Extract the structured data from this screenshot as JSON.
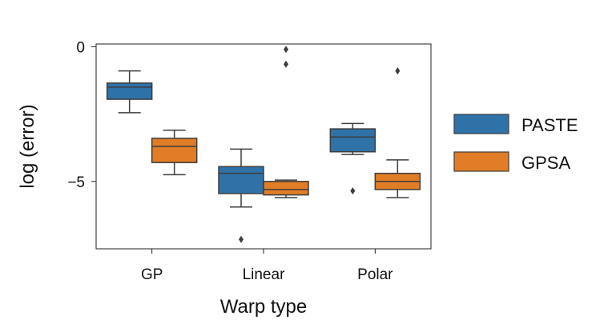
{
  "chart_data": {
    "type": "box",
    "xlabel": "Warp type",
    "ylabel": "log (error)",
    "categories": [
      "GP",
      "Linear",
      "Polar"
    ],
    "ylim": [
      -7.5,
      0.1
    ],
    "yticks": [
      0,
      -5
    ],
    "ytick_labels": [
      "0",
      "−5"
    ],
    "grid": false,
    "legend": "right",
    "series": [
      {
        "name": "PASTE",
        "color": "#2e72a8",
        "boxes": [
          {
            "whisker_low": -2.45,
            "q1": -1.95,
            "median": -1.5,
            "q3": -1.35,
            "whisker_high": -0.9,
            "outliers": []
          },
          {
            "whisker_low": -5.95,
            "q1": -5.45,
            "median": -4.7,
            "q3": -4.45,
            "whisker_high": -3.8,
            "outliers": [
              -7.15
            ]
          },
          {
            "whisker_low": -4.0,
            "q1": -3.9,
            "median": -3.35,
            "q3": -3.05,
            "whisker_high": -2.85,
            "outliers": [
              -5.35
            ]
          }
        ]
      },
      {
        "name": "GPSA",
        "color": "#e07d26",
        "boxes": [
          {
            "whisker_low": -4.75,
            "q1": -4.3,
            "median": -3.7,
            "q3": -3.4,
            "whisker_high": -3.1,
            "outliers": []
          },
          {
            "whisker_low": -5.6,
            "q1": -5.5,
            "median": -5.3,
            "q3": -5.0,
            "whisker_high": -4.95,
            "outliers": [
              -0.65,
              -0.1
            ]
          },
          {
            "whisker_low": -5.6,
            "q1": -5.3,
            "median": -5.0,
            "q3": -4.7,
            "whisker_high": -4.2,
            "outliers": [
              -0.9
            ]
          }
        ]
      }
    ]
  }
}
